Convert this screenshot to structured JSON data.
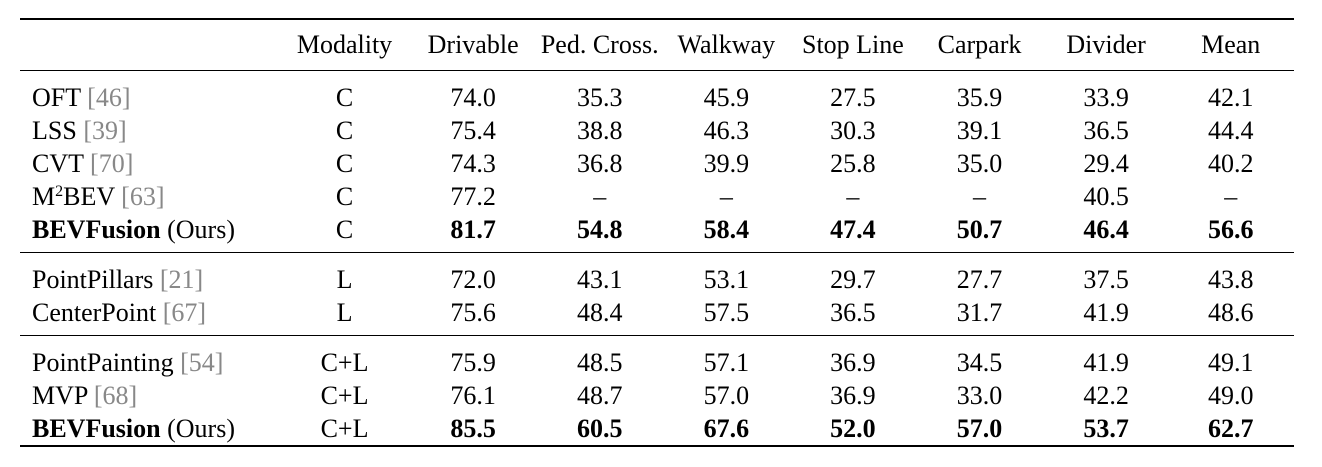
{
  "table": {
    "headers": [
      "",
      "Modality",
      "Drivable",
      "Ped. Cross.",
      "Walkway",
      "Stop Line",
      "Carpark",
      "Divider",
      "Mean"
    ],
    "groups": [
      {
        "rows": [
          {
            "name": "OFT",
            "ref": "[46]",
            "modality": "C",
            "values": [
              "74.0",
              "35.3",
              "45.9",
              "27.5",
              "35.9",
              "33.9",
              "42.1"
            ],
            "bold": false
          },
          {
            "name": "LSS",
            "ref": "[39]",
            "modality": "C",
            "values": [
              "75.4",
              "38.8",
              "46.3",
              "30.3",
              "39.1",
              "36.5",
              "44.4"
            ],
            "bold": false
          },
          {
            "name": "CVT",
            "ref": "[70]",
            "modality": "C",
            "values": [
              "74.3",
              "36.8",
              "39.9",
              "25.8",
              "35.0",
              "29.4",
              "40.2"
            ],
            "bold": false
          },
          {
            "name_pre": "M",
            "name_sup": "2",
            "name_post": "BEV",
            "ref": "[63]",
            "modality": "C",
            "values": [
              "77.2",
              "–",
              "–",
              "–",
              "–",
              "40.5",
              "–"
            ],
            "bold": false
          },
          {
            "name": "BEVFusion",
            "suffix": "(Ours)",
            "modality": "C",
            "values": [
              "81.7",
              "54.8",
              "58.4",
              "47.4",
              "50.7",
              "46.4",
              "56.6"
            ],
            "bold": true
          }
        ]
      },
      {
        "rows": [
          {
            "name": "PointPillars",
            "ref": "[21]",
            "modality": "L",
            "values": [
              "72.0",
              "43.1",
              "53.1",
              "29.7",
              "27.7",
              "37.5",
              "43.8"
            ],
            "bold": false
          },
          {
            "name": "CenterPoint",
            "ref": "[67]",
            "modality": "L",
            "values": [
              "75.6",
              "48.4",
              "57.5",
              "36.5",
              "31.7",
              "41.9",
              "48.6"
            ],
            "bold": false
          }
        ]
      },
      {
        "rows": [
          {
            "name": "PointPainting",
            "ref": "[54]",
            "modality": "C+L",
            "values": [
              "75.9",
              "48.5",
              "57.1",
              "36.9",
              "34.5",
              "41.9",
              "49.1"
            ],
            "bold": false
          },
          {
            "name": "MVP",
            "ref": "[68]",
            "modality": "C+L",
            "values": [
              "76.1",
              "48.7",
              "57.0",
              "36.9",
              "33.0",
              "42.2",
              "49.0"
            ],
            "bold": false
          },
          {
            "name": "BEVFusion",
            "suffix": "(Ours)",
            "modality": "C+L",
            "values": [
              "85.5",
              "60.5",
              "67.6",
              "52.0",
              "57.0",
              "53.7",
              "62.7"
            ],
            "bold": true
          }
        ]
      }
    ]
  }
}
